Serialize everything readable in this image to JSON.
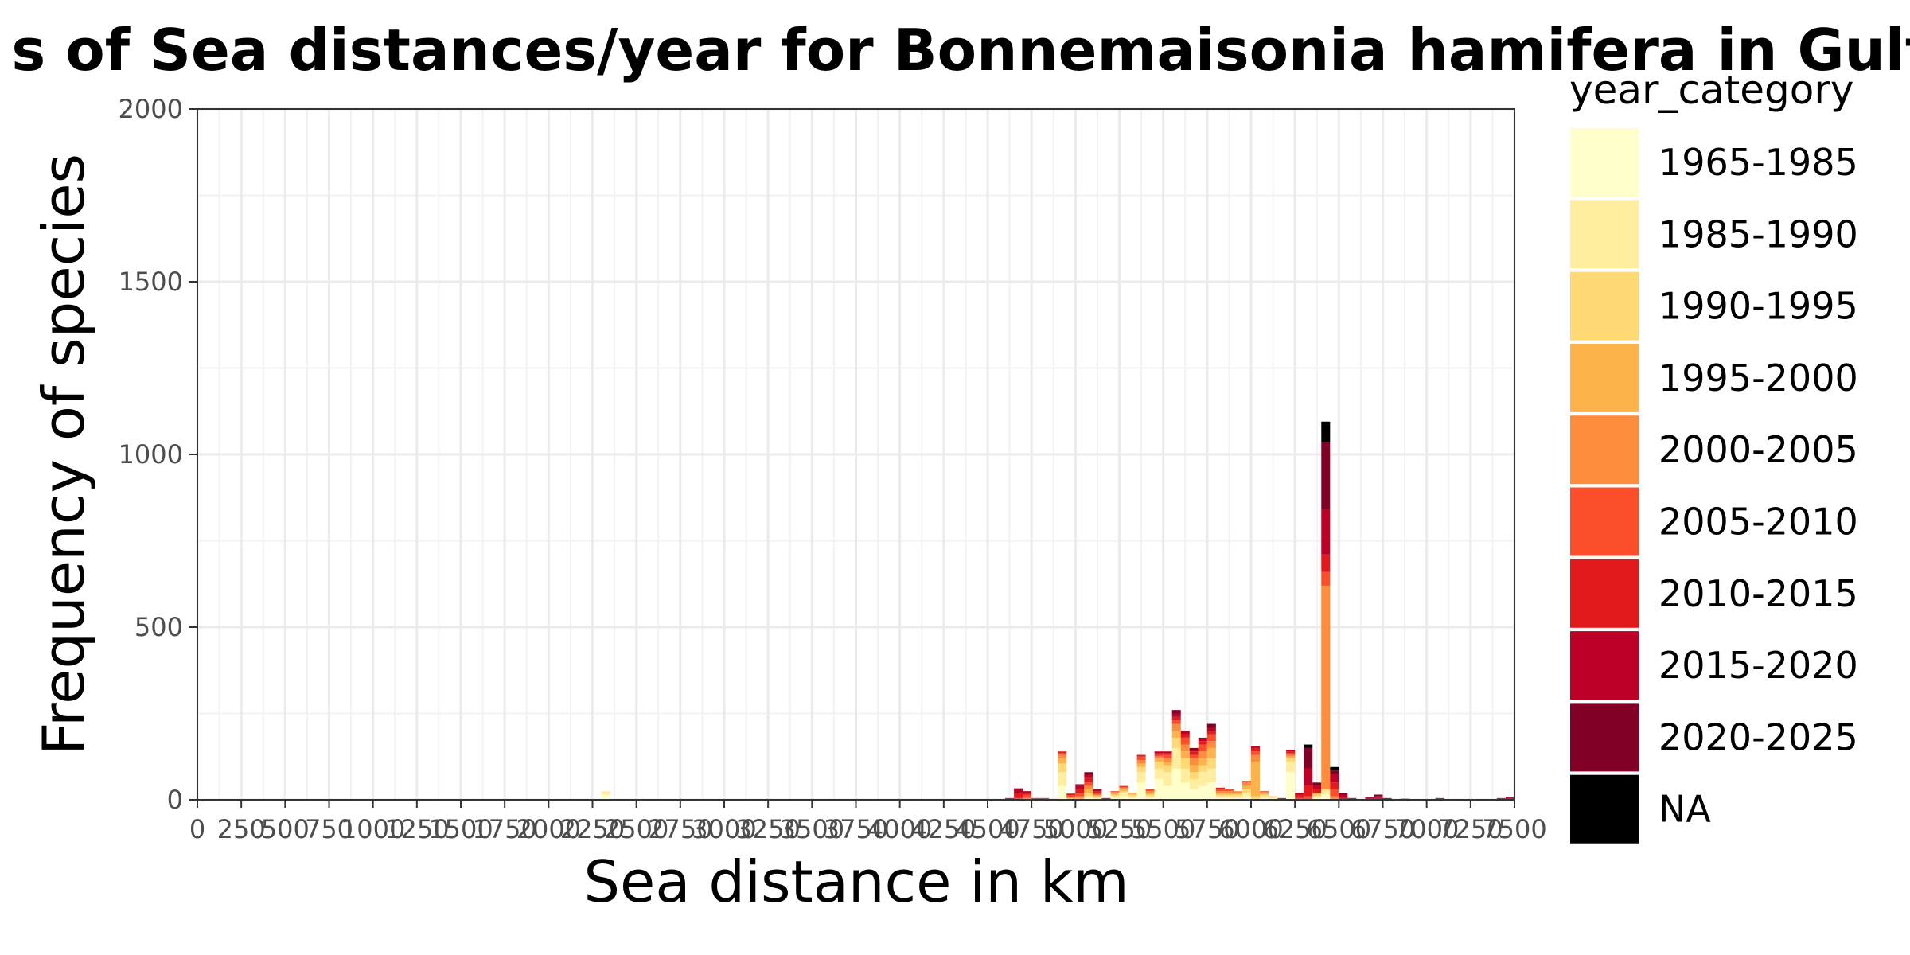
{
  "chart_data": {
    "type": "bar",
    "stacked": true,
    "title": "s of Sea distances/year for Bonnemaisonia hamifera in Gulfof",
    "xlabel": "Sea distance in km",
    "ylabel": "Frequency of species",
    "xlim": [
      0,
      7500
    ],
    "ylim": [
      0,
      2000
    ],
    "bin_width": 50,
    "grid": true,
    "x_ticks": [
      0,
      250,
      500,
      750,
      1000,
      1250,
      1500,
      1750,
      2000,
      2250,
      2500,
      2750,
      3000,
      3250,
      3500,
      3750,
      4000,
      4250,
      4500,
      4750,
      5000,
      5250,
      5500,
      5750,
      6000,
      6250,
      6500,
      6750,
      7000,
      7250,
      7500
    ],
    "y_ticks": [
      0,
      500,
      1000,
      1500,
      2000
    ],
    "legend": {
      "title": "year_category",
      "placement": "right",
      "items": [
        {
          "label": "1965-1985",
          "color": "#FFFFCC"
        },
        {
          "label": "1985-1990",
          "color": "#FFEDA0"
        },
        {
          "label": "1990-1995",
          "color": "#FED976"
        },
        {
          "label": "1995-2000",
          "color": "#FEB24C"
        },
        {
          "label": "2000-2005",
          "color": "#FD8D3C"
        },
        {
          "label": "2005-2010",
          "color": "#FC4E2A"
        },
        {
          "label": "2010-2015",
          "color": "#E31A1C"
        },
        {
          "label": "2015-2020",
          "color": "#BD0026"
        },
        {
          "label": "2020-2025",
          "color": "#800026"
        },
        {
          "label": "NA",
          "color": "#000000"
        }
      ]
    },
    "bars": [
      {
        "x": 2300,
        "values": [
          15,
          10,
          0,
          0,
          0,
          0,
          0,
          0,
          0,
          0
        ]
      },
      {
        "x": 4600,
        "values": [
          0,
          0,
          0,
          0,
          0,
          0,
          3,
          2,
          0,
          0
        ]
      },
      {
        "x": 4650,
        "values": [
          0,
          0,
          0,
          0,
          0,
          5,
          15,
          10,
          3,
          0
        ]
      },
      {
        "x": 4700,
        "values": [
          0,
          0,
          0,
          0,
          5,
          10,
          5,
          5,
          0,
          0
        ]
      },
      {
        "x": 4750,
        "values": [
          0,
          0,
          0,
          0,
          0,
          3,
          2,
          0,
          0,
          0
        ]
      },
      {
        "x": 4800,
        "values": [
          0,
          0,
          0,
          0,
          0,
          3,
          2,
          0,
          0,
          0
        ]
      },
      {
        "x": 4850,
        "values": [
          0,
          5,
          0,
          0,
          0,
          0,
          0,
          0,
          0,
          0
        ]
      },
      {
        "x": 4900,
        "values": [
          40,
          40,
          25,
          15,
          10,
          5,
          5,
          0,
          0,
          0
        ]
      },
      {
        "x": 4950,
        "values": [
          0,
          0,
          0,
          5,
          3,
          5,
          5,
          0,
          0,
          0
        ]
      },
      {
        "x": 5000,
        "values": [
          0,
          0,
          0,
          5,
          5,
          10,
          10,
          10,
          5,
          0
        ]
      },
      {
        "x": 5050,
        "values": [
          5,
          5,
          10,
          10,
          10,
          10,
          15,
          10,
          5,
          0
        ]
      },
      {
        "x": 5100,
        "values": [
          0,
          5,
          5,
          3,
          2,
          5,
          5,
          3,
          2,
          0
        ]
      },
      {
        "x": 5150,
        "values": [
          0,
          0,
          0,
          0,
          0,
          2,
          3,
          0,
          0,
          0
        ]
      },
      {
        "x": 5200,
        "values": [
          5,
          5,
          5,
          5,
          3,
          2,
          0,
          0,
          0,
          0
        ]
      },
      {
        "x": 5250,
        "values": [
          10,
          10,
          5,
          5,
          5,
          3,
          2,
          0,
          0,
          0
        ]
      },
      {
        "x": 5300,
        "values": [
          5,
          5,
          5,
          3,
          2,
          0,
          0,
          0,
          0,
          0
        ]
      },
      {
        "x": 5350,
        "values": [
          50,
          30,
          15,
          10,
          10,
          10,
          5,
          0,
          0,
          0
        ]
      },
      {
        "x": 5400,
        "values": [
          5,
          5,
          5,
          5,
          5,
          5,
          0,
          0,
          0,
          0
        ]
      },
      {
        "x": 5450,
        "values": [
          60,
          30,
          20,
          10,
          5,
          5,
          5,
          5,
          0,
          0
        ]
      },
      {
        "x": 5500,
        "values": [
          40,
          40,
          20,
          10,
          10,
          10,
          5,
          5,
          0,
          0
        ]
      },
      {
        "x": 5550,
        "values": [
          90,
          60,
          30,
          20,
          20,
          10,
          10,
          10,
          10,
          0
        ]
      },
      {
        "x": 5600,
        "values": [
          50,
          40,
          30,
          20,
          20,
          20,
          10,
          10,
          0,
          0
        ]
      },
      {
        "x": 5650,
        "values": [
          30,
          30,
          20,
          20,
          20,
          10,
          10,
          5,
          5,
          0
        ]
      },
      {
        "x": 5700,
        "values": [
          40,
          40,
          20,
          20,
          20,
          20,
          10,
          10,
          0,
          0
        ]
      },
      {
        "x": 5750,
        "values": [
          50,
          40,
          30,
          30,
          20,
          20,
          10,
          10,
          10,
          0
        ]
      },
      {
        "x": 5800,
        "values": [
          5,
          5,
          5,
          5,
          5,
          5,
          5,
          0,
          0,
          0
        ]
      },
      {
        "x": 5850,
        "values": [
          5,
          5,
          5,
          5,
          5,
          5,
          0,
          0,
          0,
          0
        ]
      },
      {
        "x": 5900,
        "values": [
          5,
          5,
          5,
          5,
          5,
          0,
          0,
          0,
          0,
          0
        ]
      },
      {
        "x": 5950,
        "values": [
          10,
          10,
          10,
          10,
          10,
          5,
          0,
          0,
          0,
          0
        ]
      },
      {
        "x": 6000,
        "values": [
          0,
          0,
          10,
          100,
          20,
          10,
          10,
          5,
          0,
          0
        ]
      },
      {
        "x": 6050,
        "values": [
          5,
          5,
          5,
          5,
          3,
          2,
          0,
          0,
          0,
          0
        ]
      },
      {
        "x": 6100,
        "values": [
          3,
          3,
          2,
          2,
          0,
          0,
          0,
          0,
          0,
          0
        ]
      },
      {
        "x": 6150,
        "values": [
          0,
          0,
          0,
          0,
          0,
          0,
          5,
          0,
          0,
          0
        ]
      },
      {
        "x": 6200,
        "values": [
          80,
          30,
          10,
          5,
          5,
          5,
          5,
          5,
          0,
          0
        ]
      },
      {
        "x": 6250,
        "values": [
          0,
          0,
          0,
          0,
          0,
          5,
          10,
          5,
          0,
          0
        ]
      },
      {
        "x": 6300,
        "values": [
          0,
          0,
          0,
          0,
          0,
          10,
          30,
          50,
          60,
          10
        ]
      },
      {
        "x": 6350,
        "values": [
          5,
          5,
          5,
          5,
          0,
          0,
          10,
          10,
          10,
          0
        ]
      },
      {
        "x": 6400,
        "values": [
          15,
          10,
          5,
          0,
          590,
          40,
          50,
          130,
          195,
          60
        ]
      },
      {
        "x": 6450,
        "values": [
          0,
          0,
          0,
          0,
          10,
          20,
          20,
          25,
          10,
          10
        ]
      },
      {
        "x": 6500,
        "values": [
          0,
          0,
          0,
          0,
          0,
          0,
          5,
          10,
          5,
          0
        ]
      },
      {
        "x": 6550,
        "values": [
          0,
          0,
          0,
          0,
          0,
          0,
          2,
          2,
          1,
          0
        ]
      },
      {
        "x": 6650,
        "values": [
          0,
          0,
          0,
          0,
          0,
          0,
          3,
          3,
          2,
          0
        ]
      },
      {
        "x": 6700,
        "values": [
          0,
          0,
          0,
          0,
          0,
          0,
          5,
          5,
          5,
          0
        ]
      },
      {
        "x": 6750,
        "values": [
          0,
          0,
          0,
          0,
          0,
          0,
          0,
          3,
          2,
          0
        ]
      },
      {
        "x": 6850,
        "values": [
          0,
          0,
          0,
          0,
          0,
          0,
          1,
          1,
          1,
          0
        ]
      },
      {
        "x": 7050,
        "values": [
          0,
          0,
          0,
          0,
          0,
          0,
          3,
          2,
          0,
          0
        ]
      },
      {
        "x": 7400,
        "values": [
          0,
          0,
          0,
          0,
          0,
          0,
          3,
          2,
          0,
          0
        ]
      },
      {
        "x": 7450,
        "values": [
          0,
          0,
          0,
          0,
          0,
          0,
          3,
          3,
          2,
          0
        ]
      }
    ]
  }
}
